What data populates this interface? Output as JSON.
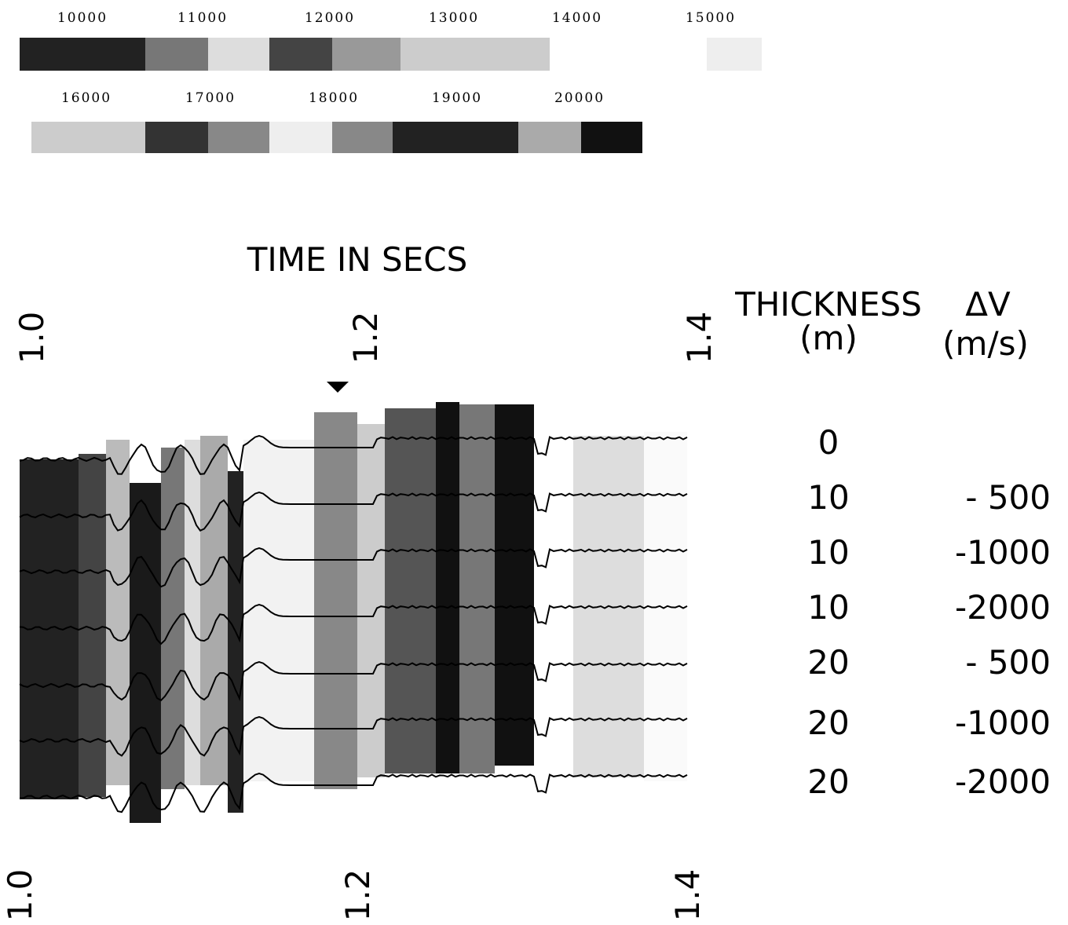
{
  "scale": {
    "row1": [
      "10000",
      "11000",
      "12000",
      "13000",
      "14000",
      "15000"
    ],
    "row2": [
      "16000",
      "17000",
      "18000",
      "19000",
      "20000"
    ]
  },
  "title": "TIME IN SECS",
  "time_labels_top": [
    "1.0",
    "1.2",
    "1.4"
  ],
  "time_labels_bottom": [
    "1.0",
    "1.2",
    "1.4"
  ],
  "table": {
    "headers": [
      [
        "THICKNESS",
        "(m)"
      ],
      [
        "ΔV",
        "(m/s)"
      ]
    ],
    "rows": [
      [
        "0"
      ],
      [
        "10",
        "- 500"
      ],
      [
        "10",
        "-1000"
      ],
      [
        "10",
        "-2000"
      ],
      [
        "20",
        "- 500"
      ],
      [
        "20",
        "-1000"
      ],
      [
        "20",
        "-2000"
      ]
    ]
  }
}
